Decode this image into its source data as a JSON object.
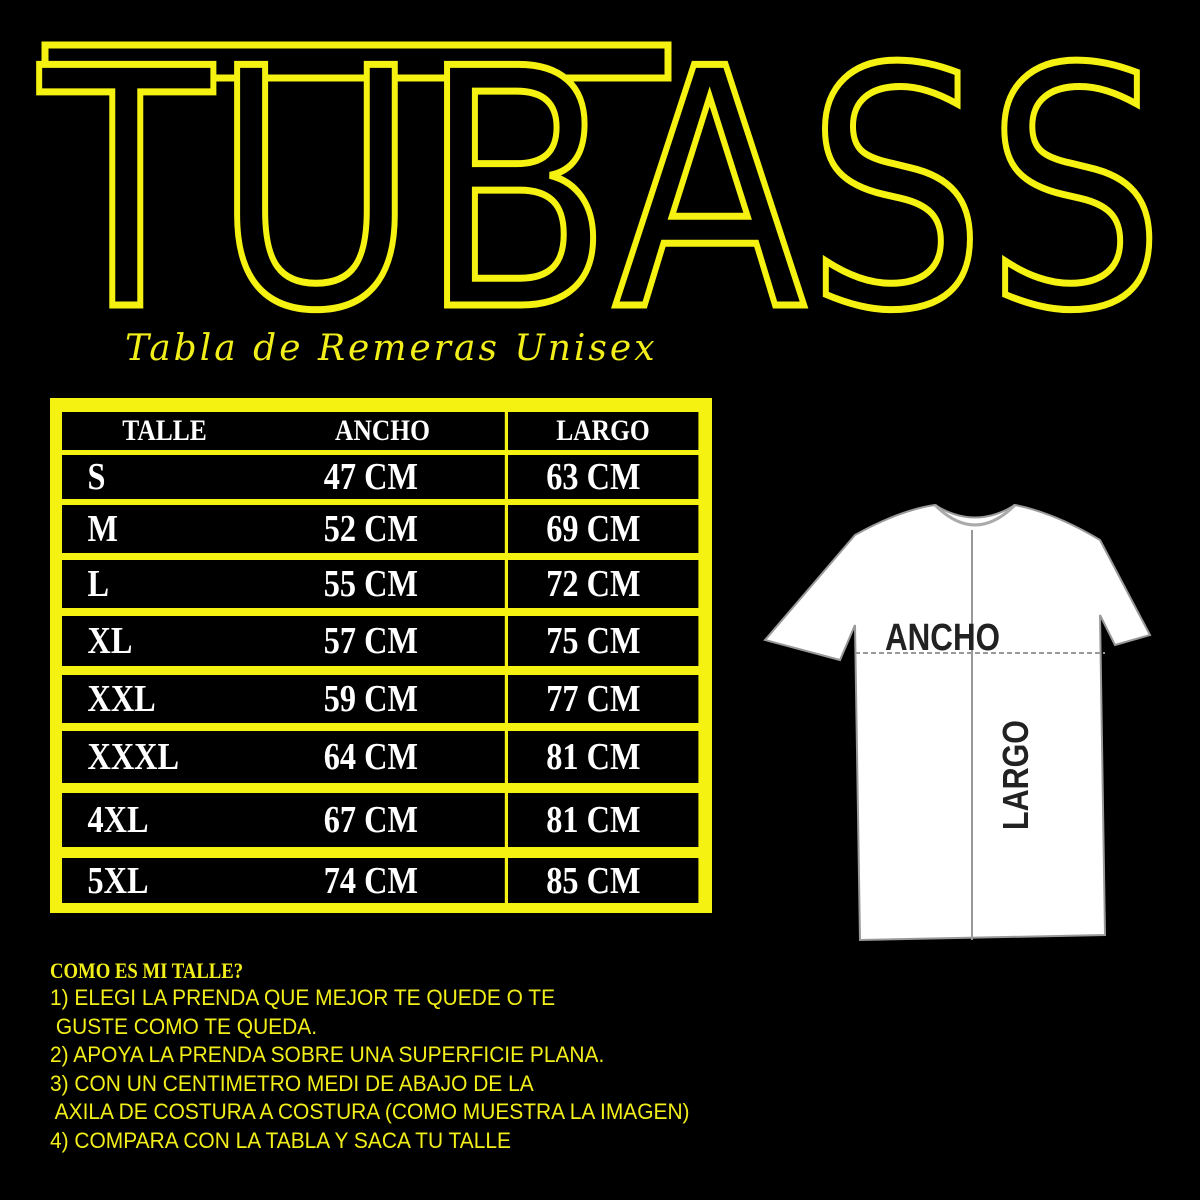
{
  "brand": {
    "logo_text": "TUBASS",
    "color": "#f5f212"
  },
  "subtitle": "Tabla de Remeras Unisex",
  "table": {
    "headers": [
      "TALLE",
      "ANCHO",
      "LARGO"
    ],
    "rows": [
      [
        "S",
        "47 CM",
        "63 CM"
      ],
      [
        "M",
        "52 CM",
        "69 CM"
      ],
      [
        "L",
        "55 CM",
        "72 CM"
      ],
      [
        "XL",
        "57 CM",
        "75 CM"
      ],
      [
        "XXL",
        "59 CM",
        "77 CM"
      ],
      [
        "XXXL",
        "64 CM",
        "81 CM"
      ],
      [
        "4XL",
        "67 CM",
        "81 CM"
      ],
      [
        "5XL",
        "74 CM",
        "85 CM"
      ]
    ]
  },
  "diagram": {
    "width_label": "ANCHO",
    "length_label": "LARGO"
  },
  "instructions": {
    "title": "COMO ES MI TALLE?",
    "lines": [
      "1) ELEGI LA PRENDA QUE MEJOR TE QUEDE O TE",
      " GUSTE COMO TE QUEDA.",
      "2) APOYA LA PRENDA SOBRE UNA SUPERFICIE PLANA.",
      "3) CON UN CENTIMETRO MEDI DE ABAJO DE LA",
      " AXILA DE COSTURA A COSTURA (COMO MUESTRA LA IMAGEN)",
      "4) COMPARA CON LA TABLA Y SACA TU TALLE"
    ]
  }
}
